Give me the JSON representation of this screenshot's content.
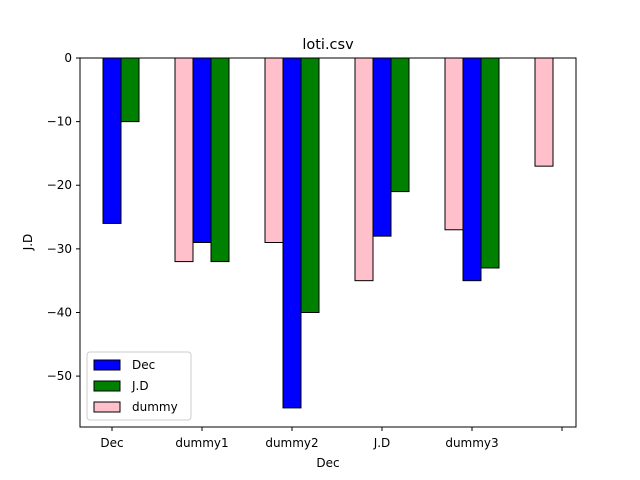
{
  "chart_data": {
    "type": "bar",
    "title": "loti.csv",
    "xlabel": "Dec",
    "ylabel": "J.D",
    "categories": [
      "Dec",
      "dummy1",
      "dummy2",
      "J.D",
      "dummy3",
      ""
    ],
    "series": [
      {
        "name": "Dec",
        "color": "#0000ff",
        "values": [
          -26,
          -29,
          -55,
          -28,
          -35,
          null
        ]
      },
      {
        "name": "J.D",
        "color": "#008000",
        "values": [
          -10,
          -32,
          -40,
          -21,
          -33,
          null
        ]
      },
      {
        "name": "dummy",
        "color": "#ffc0cb",
        "values": [
          null,
          -32,
          -29,
          -35,
          -27,
          -17
        ]
      }
    ],
    "ylim": [
      -58,
      0
    ],
    "yticks": [
      0,
      -10,
      -20,
      -30,
      -40,
      -50
    ],
    "ytick_labels": [
      "0",
      "−10",
      "−20",
      "−30",
      "−40",
      "−50"
    ],
    "grid": false,
    "legend_position": "bottom-left"
  }
}
